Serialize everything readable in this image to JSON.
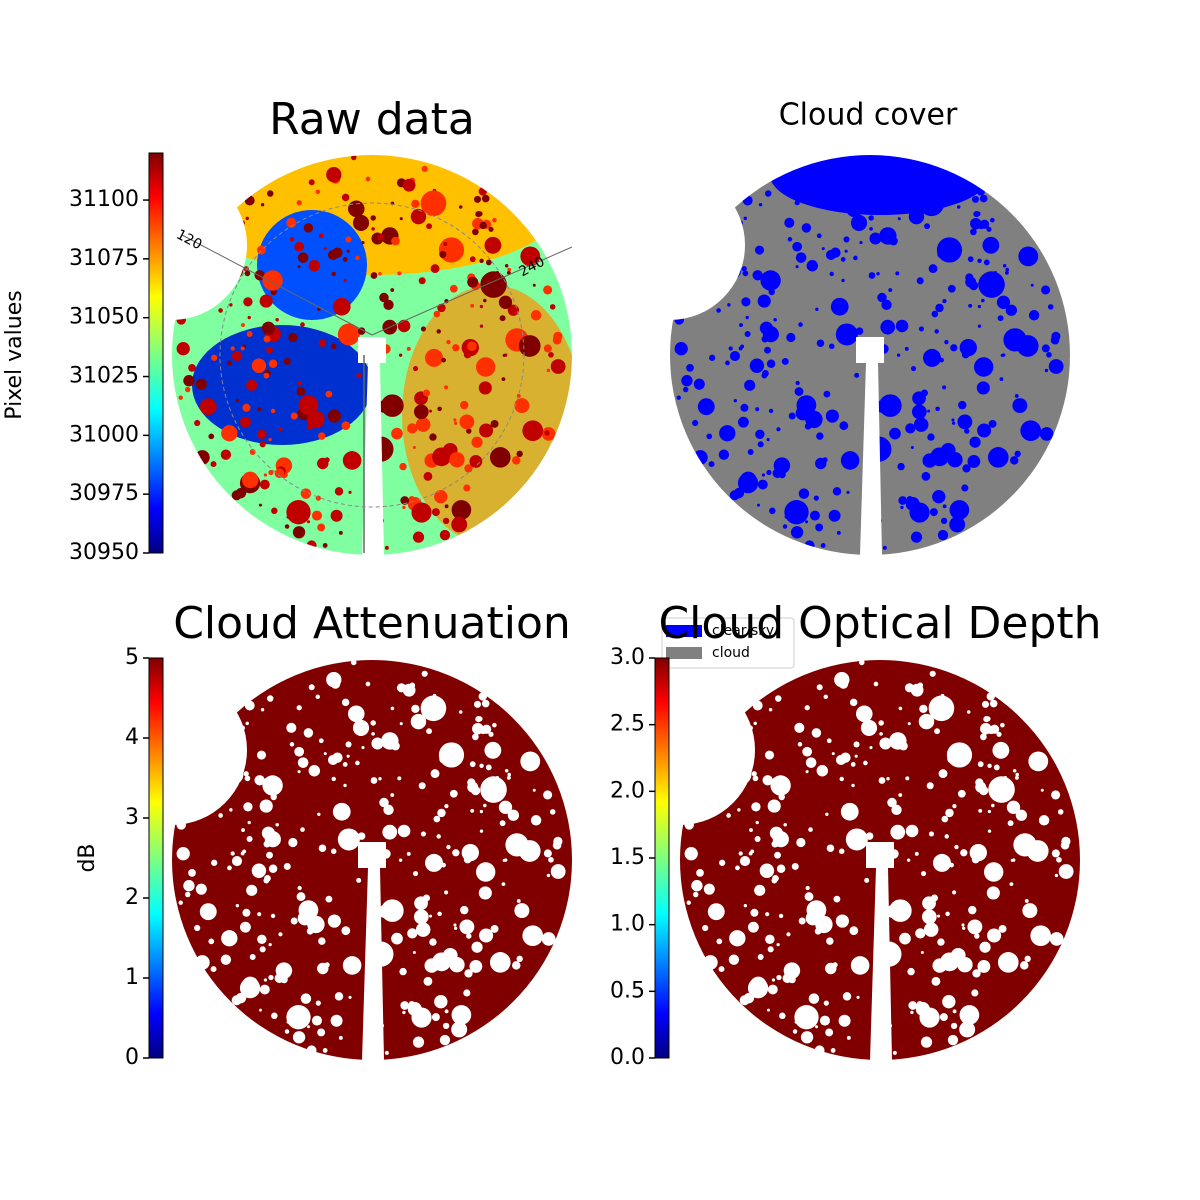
{
  "chart_data": [
    {
      "type": "image",
      "title": "Raw data",
      "colorbar_label": "Pixel values",
      "colormap": "jet",
      "ylim": [
        30950,
        31120
      ],
      "yticks": [
        30950,
        30975,
        31000,
        31025,
        31050,
        31075,
        31100
      ],
      "annotations": [
        "120",
        "240"
      ]
    },
    {
      "type": "image",
      "title": "Cloud cover",
      "series": [
        {
          "name": "clear sky",
          "color": "#0000ff"
        },
        {
          "name": "cloud",
          "color": "#808080"
        }
      ]
    },
    {
      "type": "image",
      "title": "Cloud Attenuation",
      "colorbar_label": "dB",
      "colormap": "jet",
      "ylim": [
        0,
        5
      ],
      "yticks": [
        0,
        1,
        2,
        3,
        4,
        5
      ]
    },
    {
      "type": "image",
      "title": "Cloud Optical Depth",
      "colormap": "jet",
      "ylim": [
        0,
        3
      ],
      "yticks": [
        {
          "value": 0,
          "label": "0.0"
        },
        {
          "value": 0.5,
          "label": "0.5"
        },
        {
          "value": 1,
          "label": "1.0"
        },
        {
          "value": 1.5,
          "label": "1.5"
        },
        {
          "value": 2,
          "label": "2.0"
        },
        {
          "value": 2.5,
          "label": "2.5"
        },
        {
          "value": 3,
          "label": "3.0"
        }
      ]
    }
  ]
}
